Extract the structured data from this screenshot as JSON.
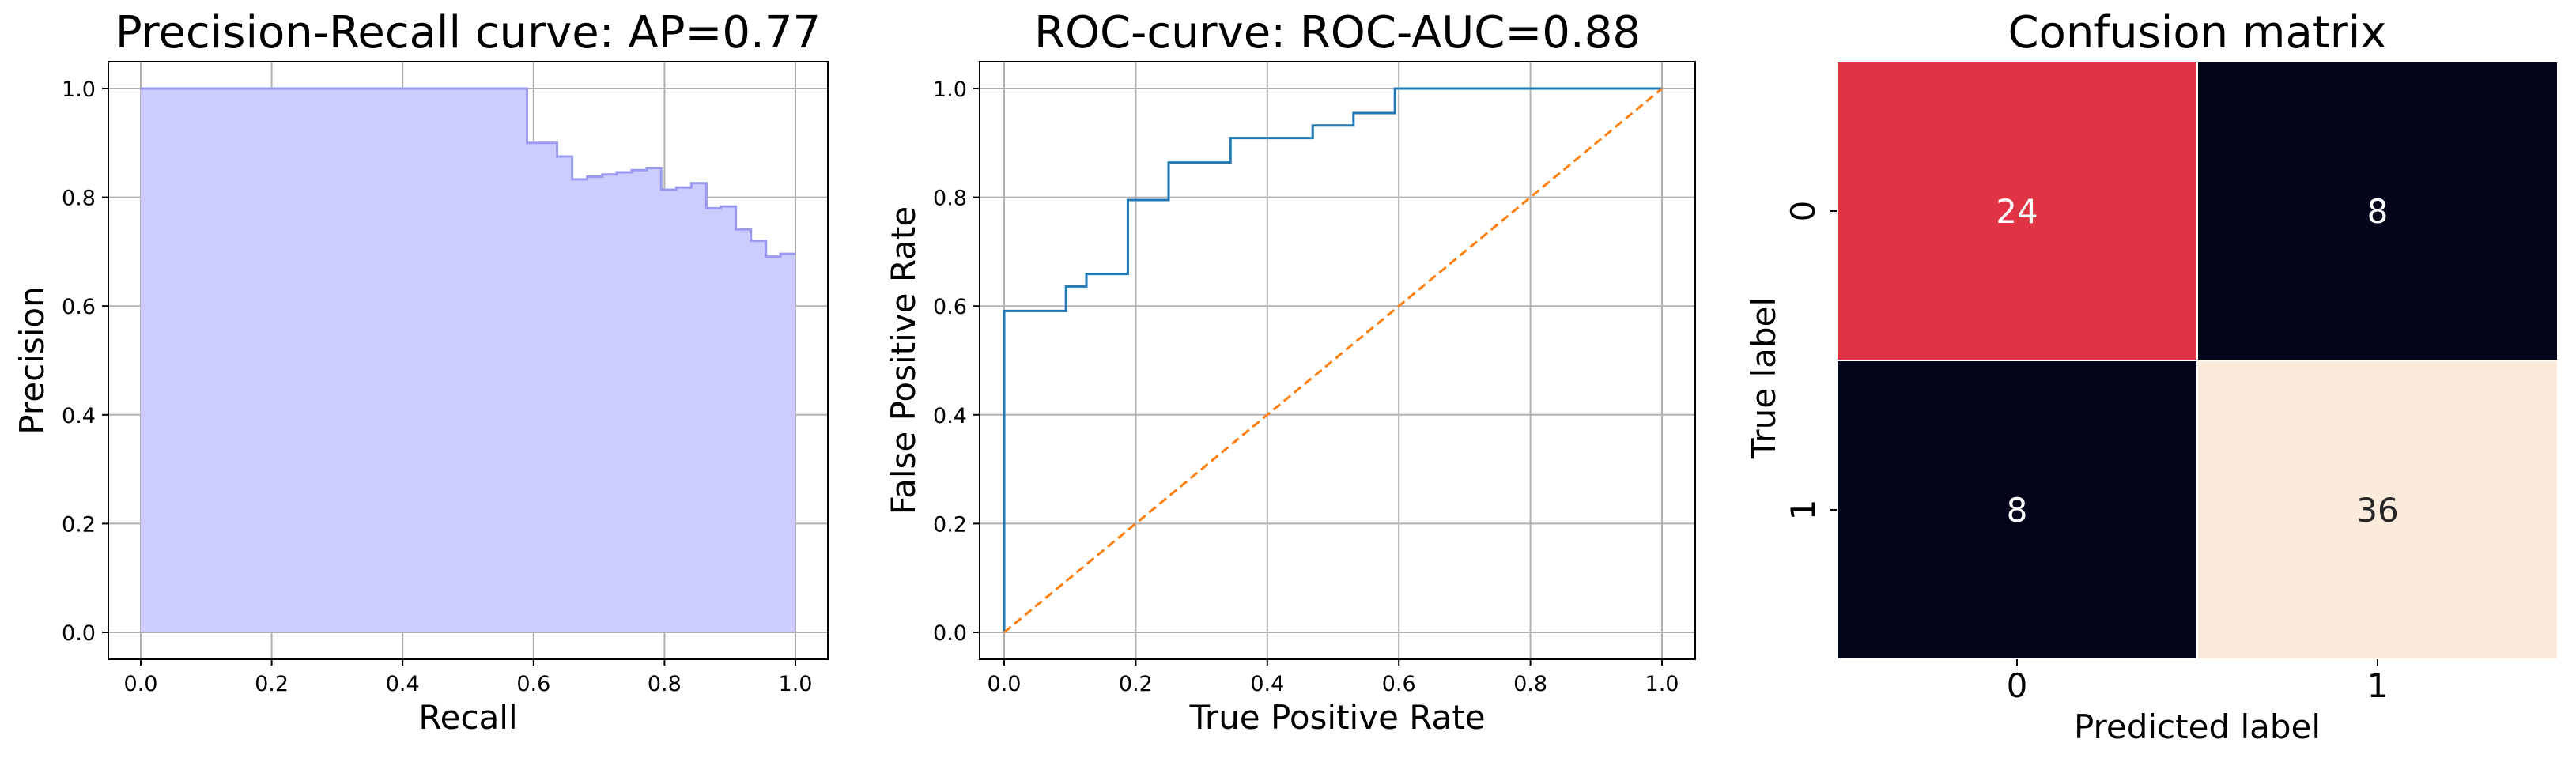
{
  "chart_data": [
    {
      "type": "area",
      "title": "Precision-Recall curve: AP=0.77",
      "xlabel": "Recall",
      "ylabel": "Precision",
      "xlim": [
        0.0,
        1.0
      ],
      "ylim": [
        0.0,
        1.0
      ],
      "xticks": [
        "0.0",
        "0.2",
        "0.4",
        "0.6",
        "0.8",
        "1.0"
      ],
      "yticks": [
        "0.0",
        "0.2",
        "0.4",
        "0.6",
        "0.8",
        "1.0"
      ],
      "grid": true,
      "step": "post",
      "fill_color": "#ccccff",
      "line_color": "#9a9af0",
      "x": [
        0.0,
        0.59,
        0.614,
        0.636,
        0.659,
        0.682,
        0.705,
        0.727,
        0.75,
        0.773,
        0.795,
        0.818,
        0.841,
        0.864,
        0.886,
        0.909,
        0.932,
        0.955,
        0.977,
        1.0
      ],
      "y": [
        1.0,
        0.9,
        0.9,
        0.875,
        0.833,
        0.838,
        0.842,
        0.846,
        0.85,
        0.854,
        0.814,
        0.818,
        0.826,
        0.78,
        0.783,
        0.741,
        0.72,
        0.691,
        0.696,
        0.696
      ]
    },
    {
      "type": "line",
      "title": "ROC-curve: ROC-AUC=0.88",
      "xlabel": "True Positive Rate",
      "ylabel": "False Positive Rate",
      "xlim": [
        0.0,
        1.0
      ],
      "ylim": [
        0.0,
        1.0
      ],
      "xticks": [
        "0.0",
        "0.2",
        "0.4",
        "0.6",
        "0.8",
        "1.0"
      ],
      "yticks": [
        "0.0",
        "0.2",
        "0.4",
        "0.6",
        "0.8",
        "1.0"
      ],
      "grid": true,
      "series": [
        {
          "color": "#1f77b4",
          "style": "solid",
          "x": [
            0.0,
            0.0,
            0.094,
            0.094,
            0.125,
            0.125,
            0.188,
            0.188,
            0.25,
            0.25,
            0.344,
            0.344,
            0.469,
            0.469,
            0.531,
            0.531,
            0.594,
            0.594,
            1.0
          ],
          "y": [
            0.0,
            0.591,
            0.591,
            0.636,
            0.636,
            0.659,
            0.659,
            0.795,
            0.795,
            0.864,
            0.864,
            0.909,
            0.909,
            0.932,
            0.932,
            0.955,
            0.955,
            1.0,
            1.0
          ]
        },
        {
          "color": "#ff7f0e",
          "style": "dashed",
          "x": [
            0.0,
            1.0
          ],
          "y": [
            0.0,
            1.0
          ]
        }
      ]
    },
    {
      "type": "heatmap",
      "title": "Confusion matrix",
      "xlabel": "Predicted label",
      "ylabel": "True label",
      "x_categories": [
        "0",
        "1"
      ],
      "y_categories": [
        "0",
        "1"
      ],
      "values": [
        [
          24,
          8
        ],
        [
          8,
          36
        ]
      ],
      "cell_colors": [
        [
          "#e03444",
          "#03051a"
        ],
        [
          "#03051a",
          "#faebdd"
        ]
      ],
      "text_colors": [
        [
          "#ffffff",
          "#ffffff"
        ],
        [
          "#ffffff",
          "#262626"
        ]
      ]
    }
  ]
}
